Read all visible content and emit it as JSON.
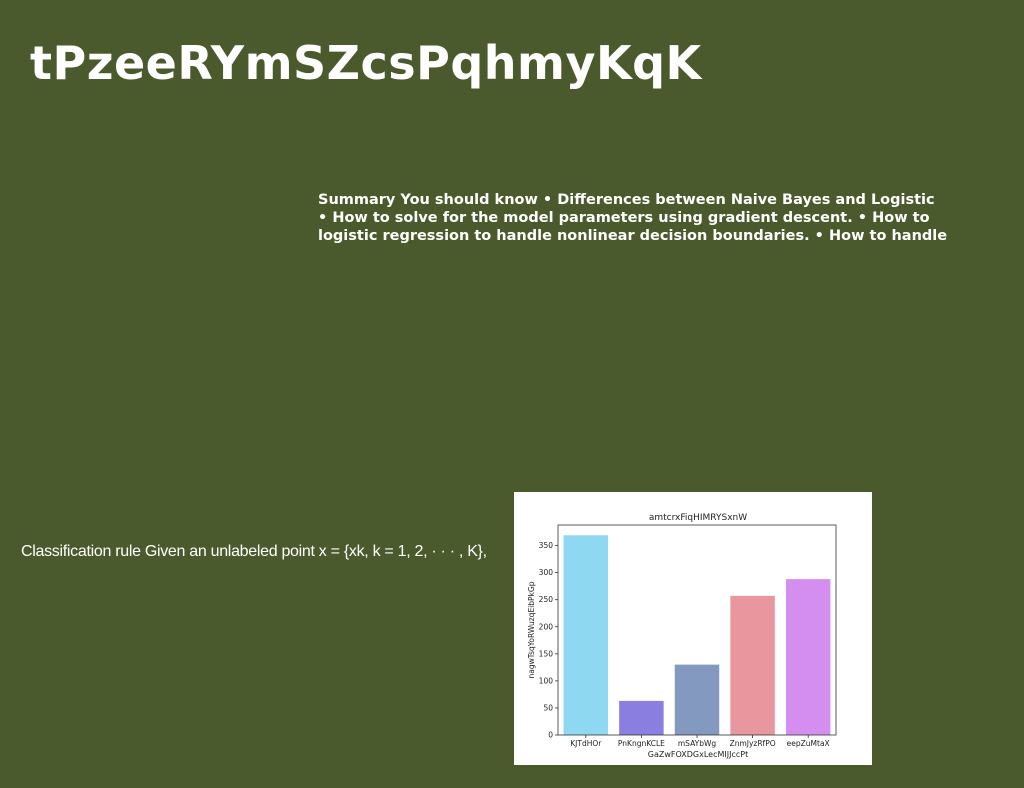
{
  "slide": {
    "title": "tPzeeRYmSZcsPqhmyKqK",
    "summary_lines": [
      "Summary You should know • Differences between Naive Bayes and Logistic",
      "• How to solve for the model parameters using gradient descent. • How to",
      "logistic regression to handle nonlinear decision boundaries. • How to handle"
    ],
    "rule_text": "Classification rule Given an unlabeled point x = {xk, k = 1, 2, · · · , K},"
  },
  "chart_data": {
    "type": "bar",
    "title": "amtcrxFiqHIMRYSxnW",
    "xlabel": "GaZwFOXDGxLecMIJJccPt",
    "ylabel": "nagwTsqYoRWuzqEibPkGp",
    "categories": [
      "KJTdHOr",
      "PnKngnKCLE",
      "mSAYbWg",
      "ZnmJyzRfPO",
      "eepZuMtaX"
    ],
    "values": [
      369,
      63,
      130,
      257,
      288
    ],
    "colors": [
      "#8ed8f2",
      "#8a7fe0",
      "#8499c0",
      "#e9969e",
      "#d48ef0"
    ],
    "yticks": [
      0,
      50,
      100,
      150,
      200,
      250,
      300,
      350
    ],
    "ylim": [
      0,
      388
    ],
    "grid": false,
    "legend": "none"
  }
}
